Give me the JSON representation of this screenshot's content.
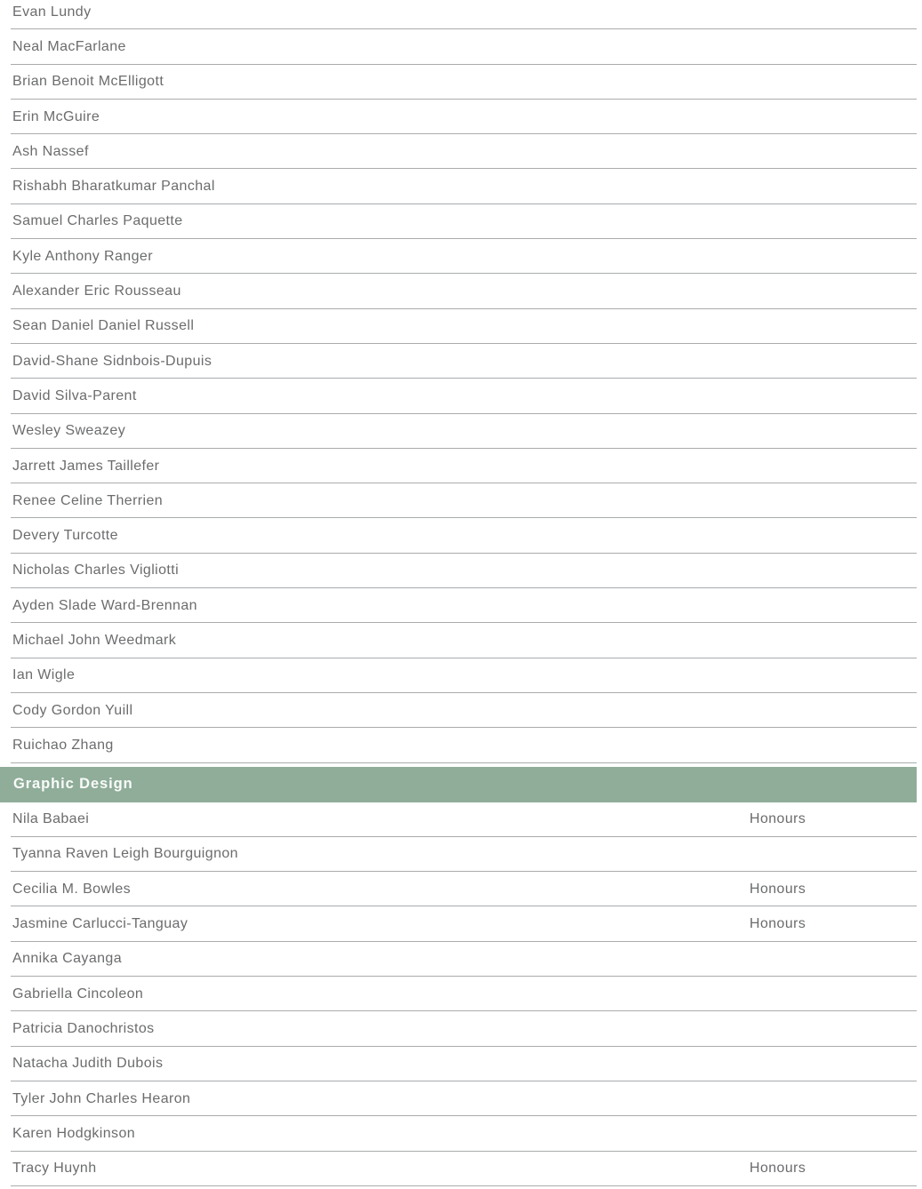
{
  "colors": {
    "background": "#ffffff",
    "section_header_bg": "#8fad99",
    "section_header_text": "#f9fbf9",
    "row_text": "#6b6c6e",
    "divider": "#a9abad"
  },
  "sections": [
    {
      "header": "",
      "rows": [
        {
          "name": "Evan Lundy",
          "award": ""
        },
        {
          "name": "Neal MacFarlane",
          "award": ""
        },
        {
          "name": "Brian Benoit McElligott",
          "award": ""
        },
        {
          "name": "Erin McGuire",
          "award": ""
        },
        {
          "name": "Ash Nassef",
          "award": ""
        },
        {
          "name": "Rishabh Bharatkumar Panchal",
          "award": ""
        },
        {
          "name": "Samuel Charles Paquette",
          "award": ""
        },
        {
          "name": "Kyle Anthony Ranger",
          "award": ""
        },
        {
          "name": "Alexander Eric Rousseau",
          "award": ""
        },
        {
          "name": "Sean Daniel Daniel Russell",
          "award": ""
        },
        {
          "name": "David-Shane Sidnbois-Dupuis",
          "award": ""
        },
        {
          "name": "David Silva-Parent",
          "award": ""
        },
        {
          "name": "Wesley Sweazey",
          "award": ""
        },
        {
          "name": "Jarrett James Taillefer",
          "award": ""
        },
        {
          "name": "Renee Celine Therrien",
          "award": ""
        },
        {
          "name": "Devery Turcotte",
          "award": ""
        },
        {
          "name": "Nicholas Charles Vigliotti",
          "award": ""
        },
        {
          "name": "Ayden Slade Ward-Brennan",
          "award": ""
        },
        {
          "name": "Michael John Weedmark",
          "award": ""
        },
        {
          "name": "Ian Wigle",
          "award": ""
        },
        {
          "name": "Cody Gordon Yuill",
          "award": ""
        },
        {
          "name": "Ruichao Zhang",
          "award": ""
        }
      ]
    },
    {
      "header": "Graphic Design",
      "rows": [
        {
          "name": "Nila Babaei",
          "award": "Honours"
        },
        {
          "name": "Tyanna Raven Leigh Bourguignon",
          "award": ""
        },
        {
          "name": "Cecilia M. Bowles",
          "award": "Honours"
        },
        {
          "name": "Jasmine Carlucci-Tanguay",
          "award": "Honours"
        },
        {
          "name": "Annika Cayanga",
          "award": ""
        },
        {
          "name": "Gabriella Cincoleon",
          "award": ""
        },
        {
          "name": "Patricia Danochristos",
          "award": ""
        },
        {
          "name": "Natacha Judith Dubois",
          "award": ""
        },
        {
          "name": "Tyler John Charles Hearon",
          "award": ""
        },
        {
          "name": "Karen Hodgkinson",
          "award": ""
        },
        {
          "name": "Tracy Huynh",
          "award": "Honours"
        }
      ]
    }
  ]
}
